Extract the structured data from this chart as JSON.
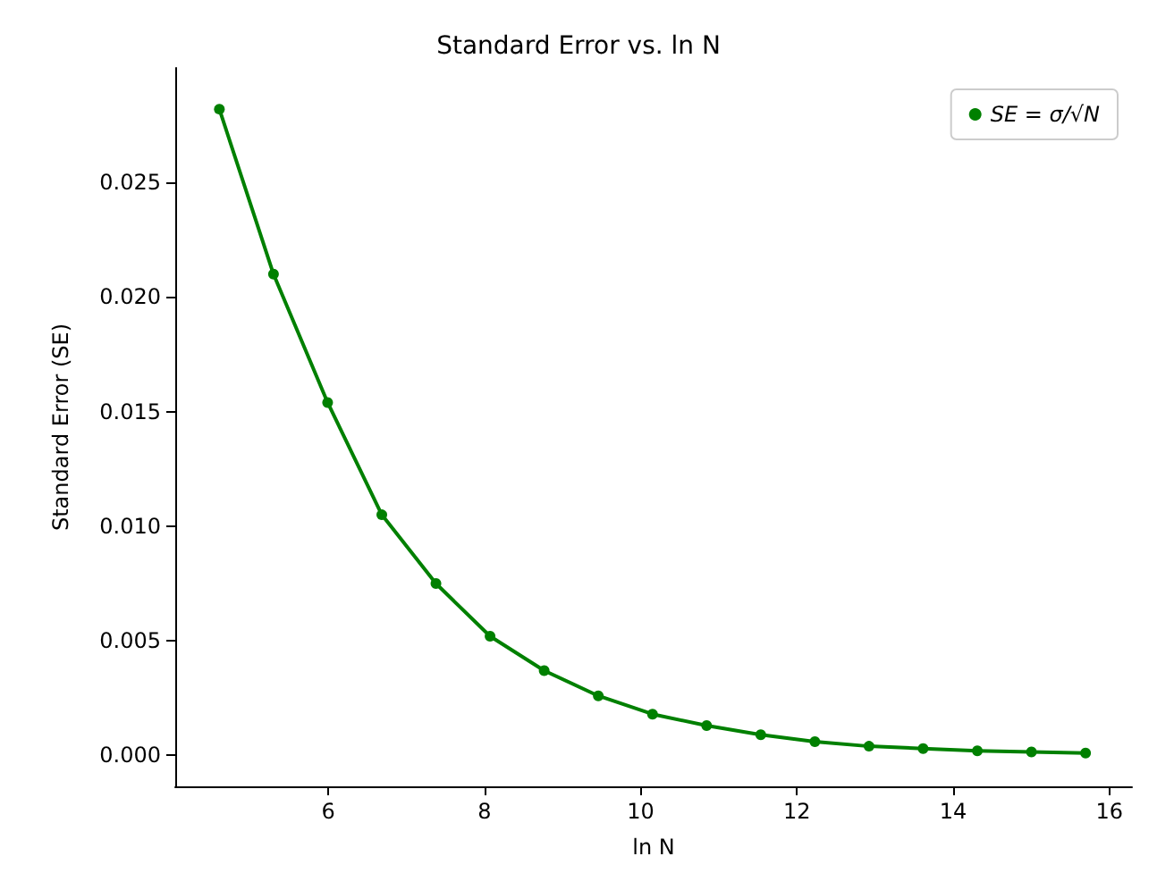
{
  "chart_data": {
    "type": "line",
    "title": "Standard Error vs. ln N",
    "xlabel": "ln N",
    "ylabel": "Standard Error (SE)",
    "x": [
      4.605,
      5.298,
      5.991,
      6.685,
      7.378,
      8.071,
      8.764,
      9.457,
      10.151,
      10.844,
      11.537,
      12.23,
      12.923,
      13.616,
      14.31,
      15.003,
      15.696
    ],
    "series": [
      {
        "name": "SE = σ/√N",
        "color": "#008000",
        "values": [
          0.0282,
          0.021,
          0.0154,
          0.0105,
          0.0075,
          0.0052,
          0.0037,
          0.0026,
          0.0018,
          0.0013,
          0.0009,
          0.0006,
          0.0004,
          0.0003,
          0.0002,
          0.00015,
          0.0001
        ]
      }
    ],
    "xlim": [
      4.04,
      16.29
    ],
    "ylim": [
      -0.00135,
      0.03
    ],
    "xticks": [
      6,
      8,
      10,
      12,
      14,
      16
    ],
    "yticks": [
      {
        "value": 0,
        "label": "0.000"
      },
      {
        "value": 0.005,
        "label": "0.005"
      },
      {
        "value": 0.01,
        "label": "0.010"
      },
      {
        "value": 0.015,
        "label": "0.015"
      },
      {
        "value": 0.02,
        "label": "0.020"
      },
      {
        "value": 0.025,
        "label": "0.025"
      }
    ],
    "grid": false,
    "legend": "top right",
    "marker": "circle",
    "line_style": "solid"
  }
}
